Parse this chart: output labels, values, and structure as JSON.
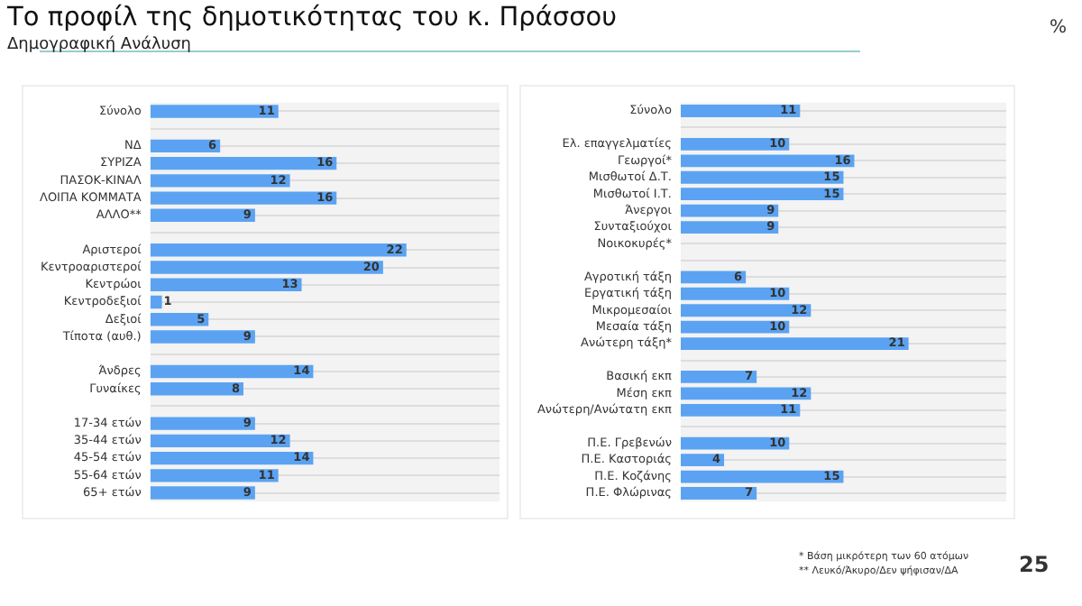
{
  "chart_data": [
    {
      "type": "bar",
      "orientation": "horizontal",
      "title": "Το προφίλ της δημοτικότητας του κ. Πράσσου",
      "subtitle": "Δημογραφική Ανάλυση",
      "annotations": [
        "%"
      ],
      "categories": [
        "Σύνολο",
        null,
        "ΝΔ",
        "ΣΥΡΙΖΑ",
        "ΠΑΣΟΚ-ΚΙΝΑΛ",
        "ΛΟΙΠΑ ΚΟΜΜΑΤΑ",
        "ΑΛΛΟ**",
        null,
        "Αριστεροί",
        "Κεντροαριστεροί",
        "Κεντρώοι",
        "Κεντροδεξιοί",
        "Δεξιοί",
        "Τίποτα (αυθ.)",
        null,
        "Άνδρες",
        "Γυναίκες",
        null,
        "17-34 ετών",
        "35-44 ετών",
        "45-54 ετών",
        "55-64 ετών",
        "65+ ετών"
      ],
      "values": [
        11,
        null,
        6,
        16,
        12,
        16,
        9,
        null,
        22,
        20,
        13,
        1,
        5,
        9,
        null,
        14,
        8,
        null,
        9,
        12,
        14,
        11,
        9
      ],
      "color": "#5ba3f2",
      "data_labels": true,
      "legend": false,
      "grid": "y",
      "tick_labels": "y"
    },
    {
      "type": "bar",
      "orientation": "horizontal",
      "annotations": [
        "* Βάση μικρότερη των 60 ατόμων",
        "** Λευκό/Άκυρο/Δεν ψήφισαν/ΔΑ",
        "25"
      ],
      "categories": [
        "Σύνολο",
        null,
        "Ελ. επαγγελματίες",
        "Γεωργοί*",
        "Μισθωτοί Δ.Τ.",
        "Μισθωτοί Ι.Τ.",
        "Άνεργοι",
        "Συνταξιούχοι",
        "Νοικοκυρές*",
        null,
        "Αγροτική τάξη",
        "Εργατική τάξη",
        "Μικρομεσαίοι",
        "Μεσαία τάξη",
        "Ανώτερη τάξη*",
        null,
        "Βασική εκπ",
        "Μέση εκπ",
        "Ανώτερη/Ανώτατη εκπ",
        null,
        "Π.Ε. Γρεβενών",
        "Π.Ε. Καστοριάς",
        "Π.Ε. Κοζάνης",
        "Π.Ε. Φλώρινας"
      ],
      "values": [
        11,
        null,
        10,
        16,
        15,
        15,
        9,
        9,
        null,
        null,
        6,
        10,
        12,
        10,
        21,
        null,
        7,
        12,
        11,
        null,
        10,
        4,
        15,
        7
      ],
      "color": "#5ba3f2",
      "data_labels": true,
      "legend": false,
      "grid": "y",
      "tick_labels": "y"
    }
  ]
}
